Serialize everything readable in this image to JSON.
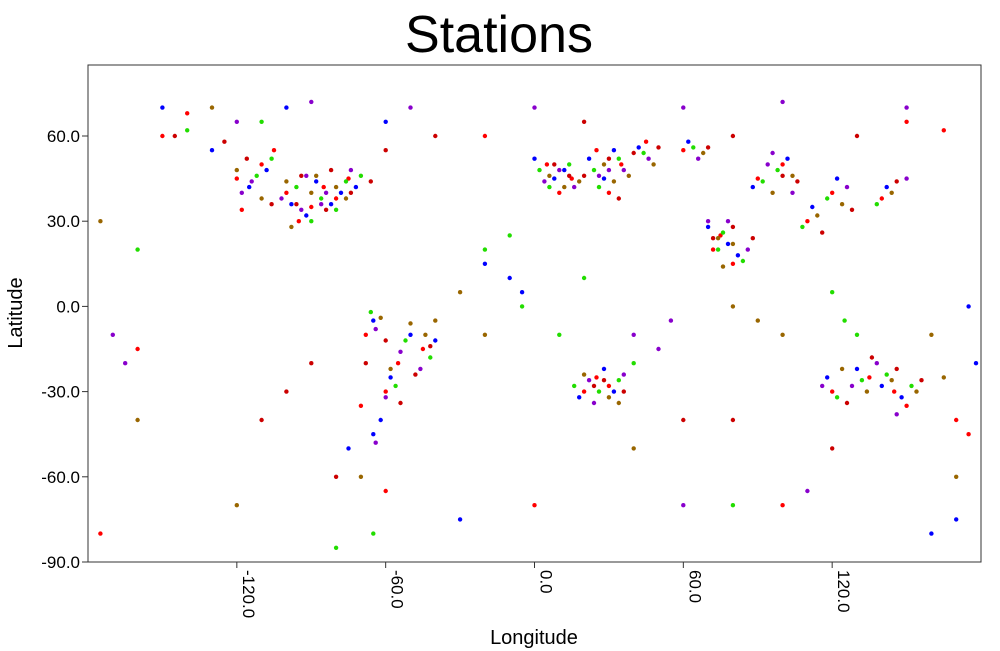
{
  "chart_data": {
    "type": "scatter",
    "title": "Stations",
    "xlabel": "Longitude",
    "ylabel": "Latitude",
    "xlim": [
      -180,
      180
    ],
    "ylim": [
      -90,
      85
    ],
    "xticks": [
      -120.0,
      -60.0,
      0.0,
      60.0,
      120.0
    ],
    "xtick_labels": [
      "-120.0",
      "-60.0",
      "0.0",
      "60.0",
      "120.0"
    ],
    "yticks": [
      60.0,
      30.0,
      0.0,
      -30.0,
      -60.0,
      -90.0
    ],
    "ytick_labels": [
      "60.0",
      "30.0",
      "0.0",
      "-30.0",
      "-60.0",
      "-90.0"
    ],
    "grid": false,
    "legend": false,
    "marker": "circle",
    "colors": [
      "#ff0000",
      "#0000ff",
      "#22dd00",
      "#8800cc",
      "#996600",
      "#cc0000"
    ],
    "series": [
      {
        "color": "#ff0000",
        "points": [
          [
            -120,
            45
          ],
          [
            -100,
            40
          ],
          [
            -90,
            35
          ],
          [
            -80,
            38
          ],
          [
            -110,
            50
          ],
          [
            -75,
            45
          ],
          [
            -95,
            30
          ],
          [
            -85,
            42
          ],
          [
            -118,
            34
          ],
          [
            -105,
            55
          ],
          [
            -68,
            -10
          ],
          [
            -55,
            -20
          ],
          [
            -45,
            -15
          ],
          [
            -60,
            -30
          ],
          [
            -70,
            -35
          ],
          [
            5,
            50
          ],
          [
            15,
            45
          ],
          [
            25,
            55
          ],
          [
            35,
            50
          ],
          [
            45,
            58
          ],
          [
            10,
            40
          ],
          [
            30,
            40
          ],
          [
            75,
            25
          ],
          [
            80,
            15
          ],
          [
            72,
            20
          ],
          [
            135,
            -25
          ],
          [
            145,
            -30
          ],
          [
            120,
            -30
          ],
          [
            150,
            -35
          ],
          [
            20,
            -30
          ],
          [
            25,
            -25
          ],
          [
            30,
            -28
          ],
          [
            110,
            30
          ],
          [
            120,
            40
          ],
          [
            100,
            50
          ],
          [
            60,
            55
          ],
          [
            90,
            45
          ],
          [
            140,
            38
          ],
          [
            -20,
            60
          ],
          [
            -150,
            60
          ],
          [
            -140,
            68
          ],
          [
            -160,
            -15
          ],
          [
            170,
            -40
          ],
          [
            175,
            -45
          ],
          [
            -175,
            -80
          ],
          [
            100,
            -70
          ],
          [
            0,
            -70
          ],
          [
            -60,
            -65
          ],
          [
            150,
            65
          ],
          [
            165,
            62
          ]
        ]
      },
      {
        "color": "#0000ff",
        "points": [
          [
            -115,
            42
          ],
          [
            -98,
            36
          ],
          [
            -88,
            44
          ],
          [
            -78,
            40
          ],
          [
            -108,
            48
          ],
          [
            -72,
            42
          ],
          [
            -92,
            32
          ],
          [
            -82,
            36
          ],
          [
            -65,
            -5
          ],
          [
            -50,
            -10
          ],
          [
            -40,
            -12
          ],
          [
            -58,
            -25
          ],
          [
            -62,
            -40
          ],
          [
            0,
            52
          ],
          [
            12,
            48
          ],
          [
            22,
            52
          ],
          [
            32,
            55
          ],
          [
            42,
            56
          ],
          [
            8,
            45
          ],
          [
            28,
            45
          ],
          [
            78,
            22
          ],
          [
            82,
            18
          ],
          [
            70,
            28
          ],
          [
            130,
            -22
          ],
          [
            140,
            -28
          ],
          [
            118,
            -25
          ],
          [
            148,
            -32
          ],
          [
            18,
            -32
          ],
          [
            28,
            -22
          ],
          [
            32,
            -30
          ],
          [
            112,
            35
          ],
          [
            122,
            45
          ],
          [
            102,
            52
          ],
          [
            62,
            58
          ],
          [
            88,
            42
          ],
          [
            142,
            42
          ],
          [
            -130,
            55
          ],
          [
            -100,
            70
          ],
          [
            -60,
            65
          ],
          [
            -30,
            -75
          ],
          [
            160,
            -80
          ],
          [
            170,
            -75
          ],
          [
            -10,
            10
          ],
          [
            -5,
            5
          ],
          [
            -20,
            15
          ],
          [
            175,
            0
          ],
          [
            178,
            -20
          ],
          [
            -75,
            -50
          ],
          [
            -65,
            -45
          ],
          [
            -150,
            70
          ]
        ]
      },
      {
        "color": "#22dd00",
        "points": [
          [
            -112,
            46
          ],
          [
            -96,
            42
          ],
          [
            -86,
            38
          ],
          [
            -76,
            44
          ],
          [
            -106,
            52
          ],
          [
            -70,
            46
          ],
          [
            -90,
            30
          ],
          [
            -80,
            34
          ],
          [
            -66,
            -2
          ],
          [
            -52,
            -12
          ],
          [
            -42,
            -18
          ],
          [
            -56,
            -28
          ],
          [
            2,
            48
          ],
          [
            14,
            50
          ],
          [
            24,
            48
          ],
          [
            34,
            52
          ],
          [
            44,
            54
          ],
          [
            6,
            42
          ],
          [
            26,
            42
          ],
          [
            76,
            26
          ],
          [
            84,
            16
          ],
          [
            74,
            20
          ],
          [
            132,
            -26
          ],
          [
            142,
            -24
          ],
          [
            122,
            -32
          ],
          [
            152,
            -28
          ],
          [
            16,
            -28
          ],
          [
            26,
            -30
          ],
          [
            34,
            -26
          ],
          [
            108,
            28
          ],
          [
            118,
            38
          ],
          [
            98,
            48
          ],
          [
            64,
            56
          ],
          [
            92,
            44
          ],
          [
            138,
            36
          ],
          [
            -140,
            62
          ],
          [
            -110,
            65
          ],
          [
            -20,
            20
          ],
          [
            -10,
            25
          ],
          [
            -5,
            0
          ],
          [
            10,
            -10
          ],
          [
            20,
            10
          ],
          [
            40,
            -20
          ],
          [
            120,
            5
          ],
          [
            125,
            -5
          ],
          [
            130,
            -10
          ],
          [
            -80,
            -85
          ],
          [
            -65,
            -80
          ],
          [
            80,
            -70
          ],
          [
            -160,
            20
          ]
        ]
      },
      {
        "color": "#8800cc",
        "points": [
          [
            -118,
            40
          ],
          [
            -102,
            38
          ],
          [
            -92,
            46
          ],
          [
            -84,
            40
          ],
          [
            -114,
            44
          ],
          [
            -74,
            48
          ],
          [
            -94,
            34
          ],
          [
            -86,
            36
          ],
          [
            -64,
            -8
          ],
          [
            -54,
            -16
          ],
          [
            -46,
            -22
          ],
          [
            -60,
            -32
          ],
          [
            -64,
            -48
          ],
          [
            4,
            44
          ],
          [
            16,
            42
          ],
          [
            26,
            46
          ],
          [
            36,
            48
          ],
          [
            46,
            52
          ],
          [
            10,
            48
          ],
          [
            30,
            48
          ],
          [
            70,
            30
          ],
          [
            86,
            20
          ],
          [
            78,
            30
          ],
          [
            128,
            -28
          ],
          [
            138,
            -20
          ],
          [
            116,
            -28
          ],
          [
            146,
            -38
          ],
          [
            22,
            -26
          ],
          [
            24,
            -34
          ],
          [
            36,
            -24
          ],
          [
            104,
            40
          ],
          [
            126,
            42
          ],
          [
            96,
            54
          ],
          [
            66,
            52
          ],
          [
            94,
            50
          ],
          [
            150,
            45
          ],
          [
            -120,
            65
          ],
          [
            -90,
            72
          ],
          [
            -50,
            70
          ],
          [
            0,
            70
          ],
          [
            60,
            70
          ],
          [
            100,
            72
          ],
          [
            150,
            70
          ],
          [
            40,
            -10
          ],
          [
            50,
            -15
          ],
          [
            55,
            -5
          ],
          [
            -170,
            -10
          ],
          [
            -165,
            -20
          ],
          [
            60,
            -70
          ],
          [
            110,
            -65
          ]
        ]
      },
      {
        "color": "#996600",
        "points": [
          [
            -110,
            38
          ],
          [
            -100,
            44
          ],
          [
            -90,
            40
          ],
          [
            -80,
            42
          ],
          [
            -120,
            48
          ],
          [
            -76,
            38
          ],
          [
            -98,
            28
          ],
          [
            -88,
            46
          ],
          [
            -62,
            -4
          ],
          [
            -50,
            -6
          ],
          [
            -44,
            -10
          ],
          [
            -58,
            -22
          ],
          [
            6,
            46
          ],
          [
            18,
            44
          ],
          [
            28,
            50
          ],
          [
            38,
            46
          ],
          [
            48,
            50
          ],
          [
            12,
            42
          ],
          [
            32,
            44
          ],
          [
            74,
            24
          ],
          [
            80,
            22
          ],
          [
            76,
            14
          ],
          [
            134,
            -30
          ],
          [
            144,
            -26
          ],
          [
            124,
            -22
          ],
          [
            154,
            -30
          ],
          [
            20,
            -24
          ],
          [
            30,
            -32
          ],
          [
            34,
            -34
          ],
          [
            114,
            32
          ],
          [
            124,
            36
          ],
          [
            104,
            46
          ],
          [
            68,
            54
          ],
          [
            96,
            40
          ],
          [
            144,
            40
          ],
          [
            -130,
            70
          ],
          [
            -70,
            -60
          ],
          [
            -40,
            -5
          ],
          [
            -30,
            5
          ],
          [
            -20,
            -10
          ],
          [
            80,
            0
          ],
          [
            90,
            -5
          ],
          [
            100,
            -10
          ],
          [
            160,
            -10
          ],
          [
            165,
            -25
          ],
          [
            -175,
            30
          ],
          [
            -160,
            -40
          ],
          [
            170,
            -60
          ],
          [
            -120,
            -70
          ],
          [
            40,
            -50
          ]
        ]
      },
      {
        "color": "#cc0000",
        "points": [
          [
            -106,
            36
          ],
          [
            -94,
            46
          ],
          [
            -84,
            34
          ],
          [
            -74,
            40
          ],
          [
            -116,
            52
          ],
          [
            -66,
            44
          ],
          [
            -96,
            36
          ],
          [
            -82,
            48
          ],
          [
            -60,
            -12
          ],
          [
            -48,
            -24
          ],
          [
            -42,
            -14
          ],
          [
            -54,
            -34
          ],
          [
            -68,
            -20
          ],
          [
            8,
            50
          ],
          [
            20,
            46
          ],
          [
            30,
            52
          ],
          [
            40,
            54
          ],
          [
            50,
            56
          ],
          [
            14,
            46
          ],
          [
            34,
            38
          ],
          [
            72,
            24
          ],
          [
            88,
            24
          ],
          [
            80,
            28
          ],
          [
            136,
            -18
          ],
          [
            146,
            -22
          ],
          [
            126,
            -34
          ],
          [
            156,
            -26
          ],
          [
            24,
            -28
          ],
          [
            28,
            -26
          ],
          [
            36,
            -30
          ],
          [
            116,
            26
          ],
          [
            128,
            34
          ],
          [
            106,
            44
          ],
          [
            70,
            56
          ],
          [
            100,
            46
          ],
          [
            146,
            44
          ],
          [
            -145,
            60
          ],
          [
            -125,
            58
          ],
          [
            -60,
            55
          ],
          [
            -40,
            60
          ],
          [
            20,
            65
          ],
          [
            80,
            60
          ],
          [
            130,
            60
          ],
          [
            -90,
            -20
          ],
          [
            -100,
            -30
          ],
          [
            -110,
            -40
          ],
          [
            -80,
            -60
          ],
          [
            60,
            -40
          ],
          [
            80,
            -40
          ],
          [
            120,
            -50
          ]
        ]
      }
    ]
  }
}
